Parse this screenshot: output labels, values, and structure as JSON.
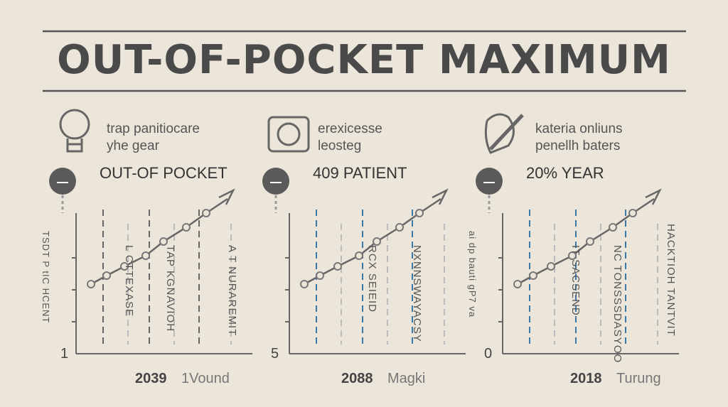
{
  "title": "OUT-OF-POCKET MAXIMUM",
  "panels": [
    {
      "caption": [
        "trap panitiocare",
        "yhe gear"
      ],
      "heading": "OUT-OF POCKET",
      "axis_label": "TSDT P tIC HCENT",
      "axis_number": 1,
      "bar_labels": [
        "L CTTEXASE",
        "TAP KGNAVIOH",
        "A T NURAREMIT"
      ],
      "footer": {
        "year": 2039,
        "label": "1Vound"
      }
    },
    {
      "caption": [
        "erexicesse",
        "leosteg"
      ],
      "heading": "409 PATIENT",
      "axis_number": 5,
      "bar_labels": [
        "RCX SEIEID",
        "NXNNSWAYACSY"
      ],
      "footer": {
        "year": 2088,
        "label": "Magki"
      }
    },
    {
      "caption": [
        "kateria onliuns",
        "penellh baters"
      ],
      "heading": "20% YEAR",
      "axis_label": "ai dp bauti gP7 va",
      "axis_number": 0,
      "bar_labels": [
        "IT SACSEND",
        "NC TONSSSDASYOO",
        "HACKTIOH TANTVIT"
      ],
      "footer": {
        "year": 2018,
        "label": "Turung"
      }
    }
  ]
}
